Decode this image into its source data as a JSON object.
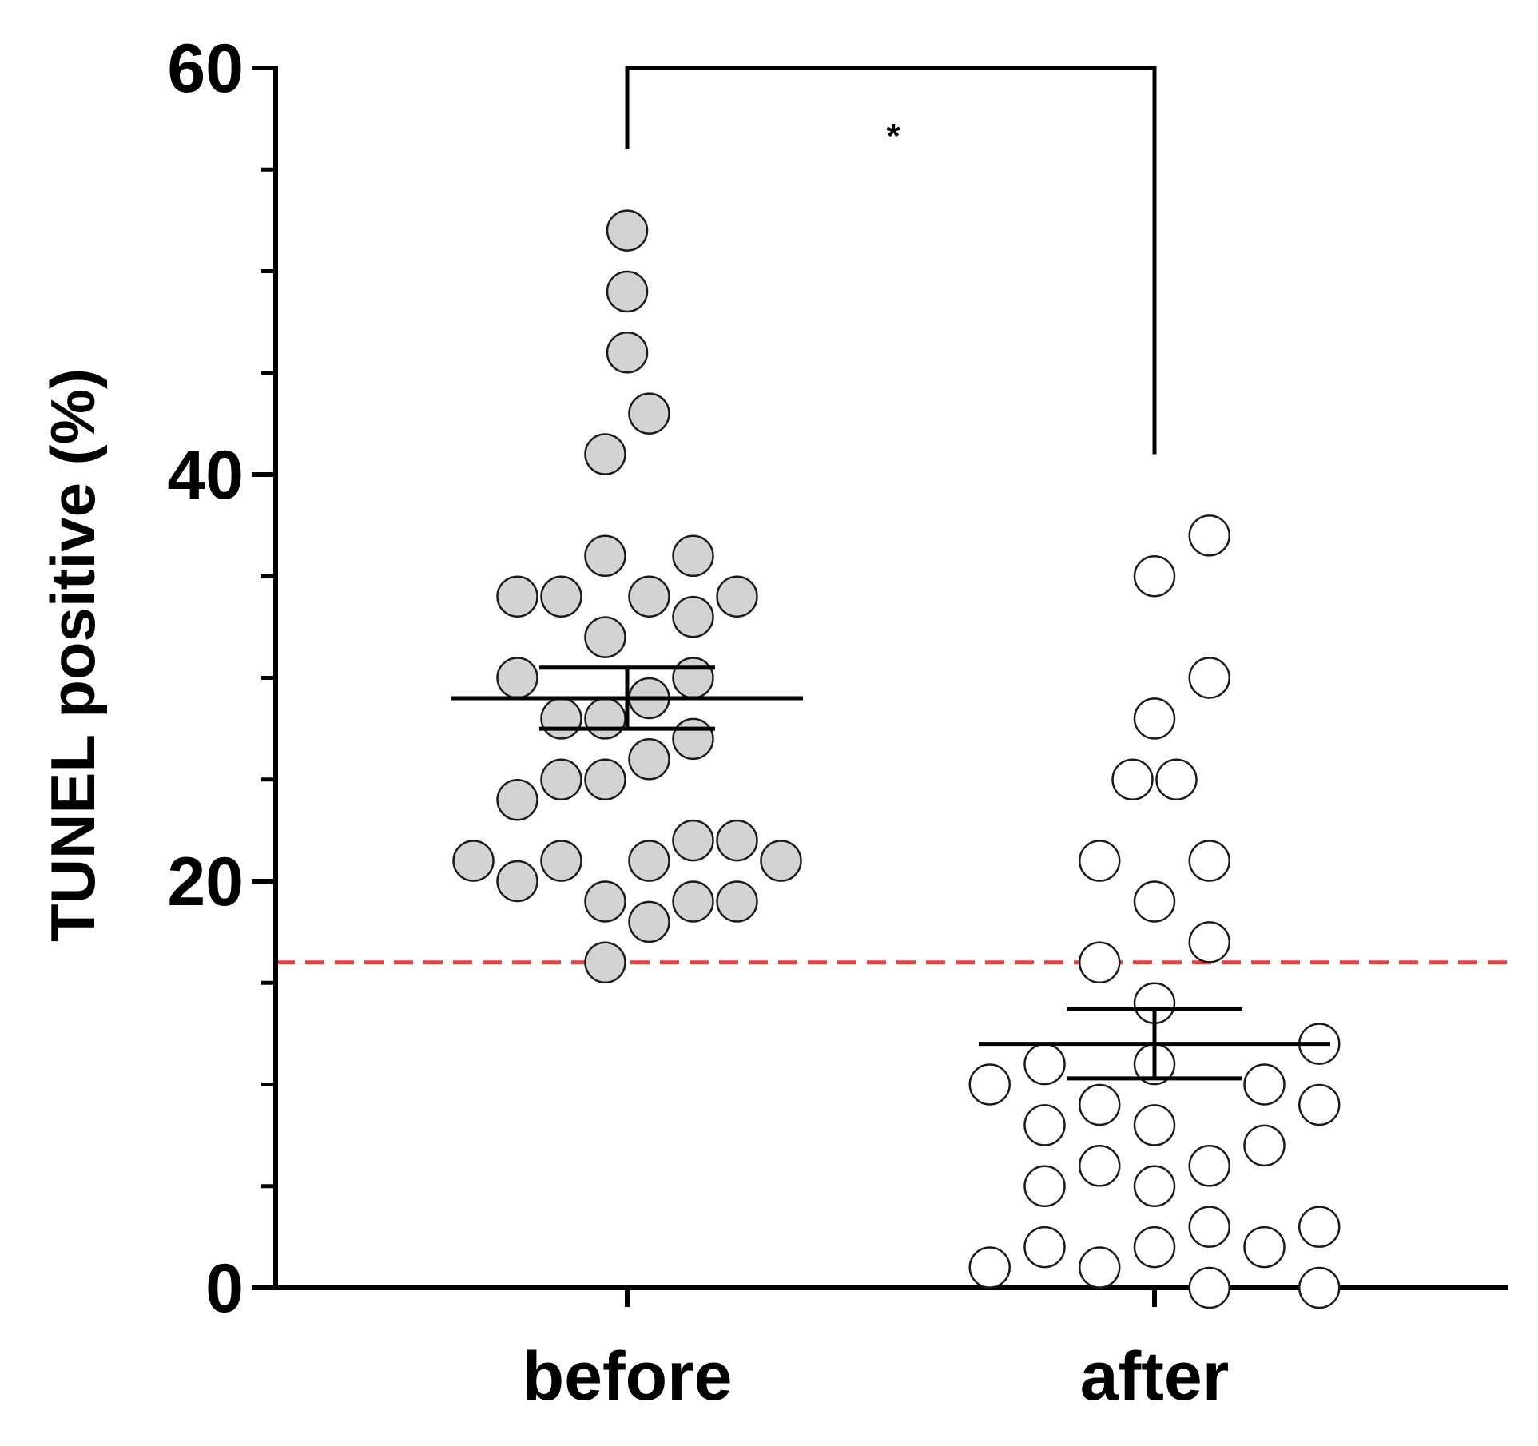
{
  "chart_data": {
    "type": "scatter",
    "subtype": "dot-plot-with-mean-sem",
    "title": "",
    "xlabel": "",
    "ylabel": "TUNEL positive (%)",
    "ylim": [
      0,
      60
    ],
    "yticks": [
      0,
      20,
      40,
      60
    ],
    "yticks_minor_step": 5,
    "categories": [
      "before",
      "after"
    ],
    "reference_line": {
      "y": 16,
      "style": "dashed",
      "color": "#e8403f"
    },
    "significance": {
      "between": [
        "before",
        "after"
      ],
      "label": "*",
      "left_top": 56,
      "right_top": 41,
      "bar_y": 60
    },
    "colors": {
      "before_fill": "#d3d3d3",
      "after_fill": "#ffffff",
      "edge": "#1a1a1a",
      "axis": "#000000"
    },
    "series": [
      {
        "name": "before",
        "mean": 29,
        "sem_low": 27.5,
        "sem_high": 30.5,
        "points": [
          {
            "value": 52,
            "offset": 0
          },
          {
            "value": 49,
            "offset": 0
          },
          {
            "value": 46,
            "offset": 0
          },
          {
            "value": 43,
            "offset": 0.5
          },
          {
            "value": 41,
            "offset": -0.5
          },
          {
            "value": 36,
            "offset": -0.5
          },
          {
            "value": 36,
            "offset": 1.5
          },
          {
            "value": 34,
            "offset": -2.5
          },
          {
            "value": 34,
            "offset": -1.5
          },
          {
            "value": 34,
            "offset": 0.5
          },
          {
            "value": 33,
            "offset": 1.5
          },
          {
            "value": 34,
            "offset": 2.5
          },
          {
            "value": 32,
            "offset": -0.5
          },
          {
            "value": 30,
            "offset": -2.5
          },
          {
            "value": 30,
            "offset": 1.5
          },
          {
            "value": 29,
            "offset": 0.5
          },
          {
            "value": 28,
            "offset": -1.5
          },
          {
            "value": 28,
            "offset": -0.5
          },
          {
            "value": 27,
            "offset": 1.5
          },
          {
            "value": 26,
            "offset": 0.5
          },
          {
            "value": 25,
            "offset": -1.5
          },
          {
            "value": 25,
            "offset": -0.5
          },
          {
            "value": 24,
            "offset": -2.5
          },
          {
            "value": 22,
            "offset": 1.5
          },
          {
            "value": 22,
            "offset": 2.5
          },
          {
            "value": 21,
            "offset": -3.5
          },
          {
            "value": 21,
            "offset": -1.5
          },
          {
            "value": 21,
            "offset": 0.5
          },
          {
            "value": 21,
            "offset": 3.5
          },
          {
            "value": 20,
            "offset": -2.5
          },
          {
            "value": 19,
            "offset": -0.5
          },
          {
            "value": 19,
            "offset": 1.5
          },
          {
            "value": 19,
            "offset": 2.5
          },
          {
            "value": 18,
            "offset": 0.5
          },
          {
            "value": 16,
            "offset": -0.5
          }
        ]
      },
      {
        "name": "after",
        "mean": 12,
        "sem_low": 10.3,
        "sem_high": 13.7,
        "points": [
          {
            "value": 37,
            "offset": 1.25
          },
          {
            "value": 35,
            "offset": 0
          },
          {
            "value": 30,
            "offset": 1.25
          },
          {
            "value": 28,
            "offset": 0
          },
          {
            "value": 25,
            "offset": -0.5
          },
          {
            "value": 25,
            "offset": 0.5
          },
          {
            "value": 21,
            "offset": -1.25
          },
          {
            "value": 21,
            "offset": 1.25
          },
          {
            "value": 19,
            "offset": 0
          },
          {
            "value": 17,
            "offset": 1.25
          },
          {
            "value": 16,
            "offset": -1.25
          },
          {
            "value": 14,
            "offset": 0
          },
          {
            "value": 12,
            "offset": 3.75
          },
          {
            "value": 11,
            "offset": -2.5
          },
          {
            "value": 11,
            "offset": 0
          },
          {
            "value": 10,
            "offset": -3.75
          },
          {
            "value": 10,
            "offset": 2.5
          },
          {
            "value": 9,
            "offset": -1.25
          },
          {
            "value": 9,
            "offset": 3.75
          },
          {
            "value": 8,
            "offset": -2.5
          },
          {
            "value": 8,
            "offset": 0
          },
          {
            "value": 7,
            "offset": 2.5
          },
          {
            "value": 6,
            "offset": -1.25
          },
          {
            "value": 6,
            "offset": 1.25
          },
          {
            "value": 5,
            "offset": -2.5
          },
          {
            "value": 5,
            "offset": 0
          },
          {
            "value": 3,
            "offset": 1.25
          },
          {
            "value": 3,
            "offset": 3.75
          },
          {
            "value": 2,
            "offset": -2.5
          },
          {
            "value": 2,
            "offset": 0
          },
          {
            "value": 2,
            "offset": 2.5
          },
          {
            "value": 1,
            "offset": -3.75
          },
          {
            "value": 1,
            "offset": -1.25
          },
          {
            "value": 0,
            "offset": 1.25
          },
          {
            "value": 0,
            "offset": 3.75
          }
        ]
      }
    ]
  }
}
